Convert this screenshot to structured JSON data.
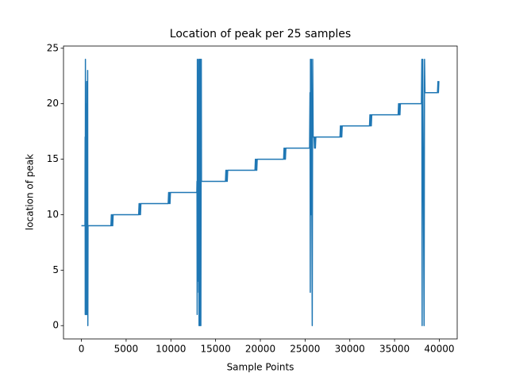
{
  "chart_data": {
    "type": "line",
    "title": "Location of peak per 25 samples",
    "x_label": "Sample Points",
    "y_label": "location of peak",
    "color": "#1f77b4",
    "xlim": [
      -2000,
      42000
    ],
    "ylim": [
      -1.2,
      25.2
    ],
    "xticks": [
      0,
      5000,
      10000,
      15000,
      20000,
      25000,
      30000,
      35000,
      40000
    ],
    "yticks": [
      0,
      5,
      10,
      15,
      20,
      25
    ],
    "x": [
      0,
      400,
      420,
      430,
      450,
      470,
      490,
      510,
      600,
      620,
      700,
      720,
      740,
      3300,
      3350,
      3400,
      3450,
      3500,
      3550,
      6400,
      6450,
      6500,
      6550,
      6600,
      6650,
      9700,
      9750,
      9800,
      9850,
      9900,
      9950,
      12900,
      12920,
      12940,
      12960,
      12980,
      13000,
      13050,
      13100,
      13150,
      13200,
      13250,
      13300,
      13350,
      13400,
      13420,
      16100,
      16150,
      16200,
      16250,
      16300,
      16350,
      19400,
      19450,
      19500,
      19550,
      19600,
      19650,
      22600,
      22650,
      22700,
      22750,
      22800,
      22850,
      25500,
      25550,
      25580,
      25600,
      25650,
      25700,
      25800,
      25850,
      25900,
      26000,
      26050,
      26100,
      26150,
      26200,
      28900,
      28950,
      29000,
      29050,
      29100,
      29150,
      32200,
      32250,
      32300,
      32350,
      32400,
      32450,
      35400,
      35450,
      35500,
      35550,
      35600,
      35650,
      38000,
      38050,
      38080,
      38100,
      38150,
      38300,
      38350,
      38400,
      39800,
      39850,
      39900,
      39950,
      40000
    ],
    "values": [
      9,
      9,
      17,
      1,
      24,
      2,
      20,
      1,
      22,
      1,
      23,
      0,
      9,
      9,
      10,
      9,
      10,
      9,
      10,
      10,
      11,
      10,
      11,
      10,
      11,
      11,
      12,
      11,
      12,
      11,
      12,
      12,
      13,
      1,
      24,
      3,
      23,
      4,
      24,
      0,
      24,
      0,
      24,
      0,
      24,
      13,
      13,
      14,
      13,
      14,
      13,
      14,
      14,
      15,
      14,
      15,
      14,
      15,
      15,
      16,
      15,
      16,
      15,
      16,
      16,
      21,
      3,
      24,
      10,
      24,
      0,
      24,
      17,
      17,
      16,
      17,
      16,
      17,
      17,
      18,
      17,
      18,
      17,
      18,
      18,
      19,
      18,
      19,
      18,
      19,
      19,
      20,
      19,
      20,
      19,
      20,
      20,
      24,
      0,
      14,
      24,
      0,
      24,
      21,
      21,
      22,
      21,
      22,
      22
    ]
  }
}
